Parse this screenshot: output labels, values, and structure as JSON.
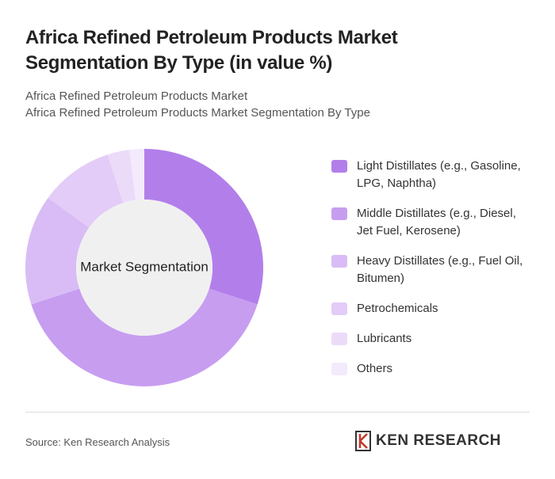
{
  "chart_data": {
    "type": "pie",
    "title": "Africa Refined Petroleum Products Market Segmentation By Type (in value %)",
    "subtitle": [
      "Africa Refined Petroleum Products Market",
      "Africa Refined Petroleum Products Market Segmentation By Type"
    ],
    "center_label": "Market Segmentation",
    "categories": [
      "Light Distillates (e.g., Gasoline, LPG, Naphtha)",
      "Middle Distillates (e.g., Diesel, Jet Fuel, Kerosene)",
      "Heavy Distillates (e.g., Fuel Oil, Bitumen)",
      "Petrochemicals",
      "Lubricants",
      "Others"
    ],
    "values": [
      30,
      40,
      15,
      10,
      3,
      2
    ],
    "colors": [
      "#b27fea",
      "#c79df0",
      "#d9bcf5",
      "#e3ccf7",
      "#ebdbf9",
      "#f3eafc"
    ],
    "legend": "right"
  },
  "footer": {
    "source": "Source: Ken Research Analysis",
    "brand": "KEN RESEARCH"
  }
}
